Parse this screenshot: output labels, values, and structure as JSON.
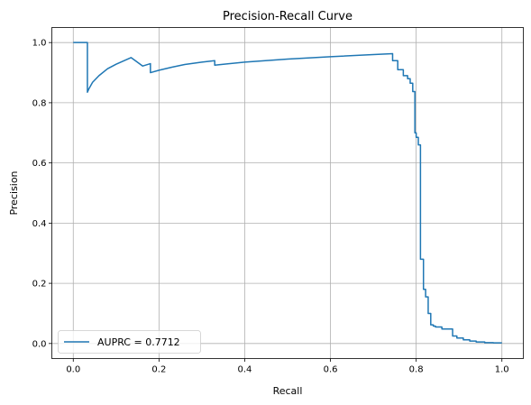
{
  "chart_data": {
    "type": "line",
    "title": "Precision-Recall Curve",
    "xlabel": "Recall",
    "ylabel": "Precision",
    "xlim": [
      -0.05,
      1.05
    ],
    "ylim": [
      -0.05,
      1.05
    ],
    "xticks": [
      0.0,
      0.2,
      0.4,
      0.6,
      0.8,
      1.0
    ],
    "yticks": [
      0.0,
      0.2,
      0.4,
      0.6,
      0.8,
      1.0
    ],
    "xtick_labels": [
      "0.0",
      "0.2",
      "0.4",
      "0.6",
      "0.8",
      "1.0"
    ],
    "ytick_labels": [
      "0.0",
      "0.2",
      "0.4",
      "0.6",
      "0.8",
      "1.0"
    ],
    "grid": true,
    "legend": {
      "placement": "lower-left"
    },
    "series": [
      {
        "name": "AUPRC = 0.7712",
        "color": "#1f77b4",
        "x": [
          0.0,
          0.033,
          0.033,
          0.036,
          0.045,
          0.06,
          0.08,
          0.1,
          0.135,
          0.162,
          0.18,
          0.18,
          0.2,
          0.23,
          0.26,
          0.3,
          0.33,
          0.33,
          0.4,
          0.5,
          0.6,
          0.7,
          0.745,
          0.745,
          0.757,
          0.757,
          0.77,
          0.77,
          0.78,
          0.78,
          0.786,
          0.786,
          0.792,
          0.792,
          0.797,
          0.797,
          0.8,
          0.8,
          0.805,
          0.805,
          0.81,
          0.81,
          0.817,
          0.817,
          0.822,
          0.822,
          0.828,
          0.828,
          0.834,
          0.834,
          0.84,
          0.84,
          0.845,
          0.845,
          0.86,
          0.86,
          0.885,
          0.885,
          0.895,
          0.895,
          0.91,
          0.91,
          0.925,
          0.925,
          0.94,
          0.94,
          0.96,
          0.96,
          0.98,
          0.98,
          1.0
        ],
        "y": [
          1.0,
          1.0,
          0.835,
          0.845,
          0.868,
          0.89,
          0.913,
          0.928,
          0.95,
          0.922,
          0.93,
          0.9,
          0.908,
          0.918,
          0.927,
          0.935,
          0.94,
          0.925,
          0.935,
          0.945,
          0.953,
          0.96,
          0.963,
          0.94,
          0.94,
          0.91,
          0.91,
          0.89,
          0.89,
          0.88,
          0.88,
          0.865,
          0.865,
          0.837,
          0.837,
          0.7,
          0.7,
          0.685,
          0.685,
          0.66,
          0.66,
          0.28,
          0.28,
          0.18,
          0.18,
          0.155,
          0.155,
          0.1,
          0.1,
          0.062,
          0.062,
          0.058,
          0.058,
          0.055,
          0.055,
          0.048,
          0.048,
          0.025,
          0.025,
          0.018,
          0.018,
          0.012,
          0.012,
          0.008,
          0.008,
          0.005,
          0.005,
          0.003,
          0.003,
          0.002,
          0.002
        ]
      }
    ]
  }
}
